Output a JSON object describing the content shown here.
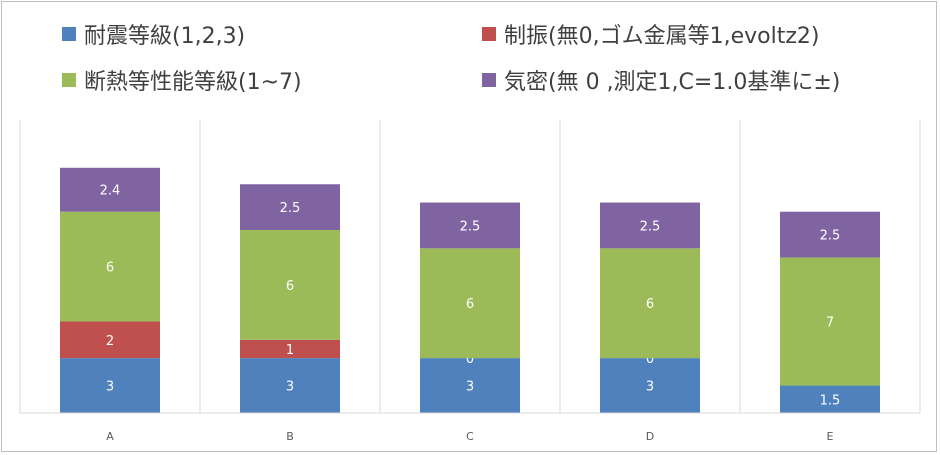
{
  "chart_data": {
    "type": "stacked-bar",
    "categories": [
      "A",
      "B",
      "C",
      "D",
      "E"
    ],
    "series": [
      {
        "name": "耐震等級(1,2,3)",
        "color": "#4f81bd",
        "values": [
          3,
          3,
          3,
          3,
          1.5
        ],
        "labels": [
          "3",
          "3",
          "3",
          "3",
          "1.5"
        ]
      },
      {
        "name": "制振(無0,ゴム金属等1,evoltz2)",
        "color": "#c0504d",
        "values": [
          2,
          1,
          0,
          0,
          0
        ],
        "labels": [
          "2",
          "1",
          "0",
          "0",
          ""
        ]
      },
      {
        "name": "断熱等性能等級(1~7)",
        "color": "#9bbb59",
        "values": [
          6,
          6,
          6,
          6,
          7
        ],
        "labels": [
          "6",
          "6",
          "6",
          "6",
          "7"
        ]
      },
      {
        "name": "気密(無 0 ,測定1,C=1.0基準に±)",
        "color": "#8064a2",
        "values": [
          2.4,
          2.5,
          2.5,
          2.5,
          2.5
        ],
        "labels": [
          "2.4",
          "2.5",
          "2.5",
          "2.5",
          "2.5"
        ]
      }
    ],
    "ylim": [
      0,
      14
    ],
    "legend_position": "top",
    "grid": "vertical category separators"
  }
}
